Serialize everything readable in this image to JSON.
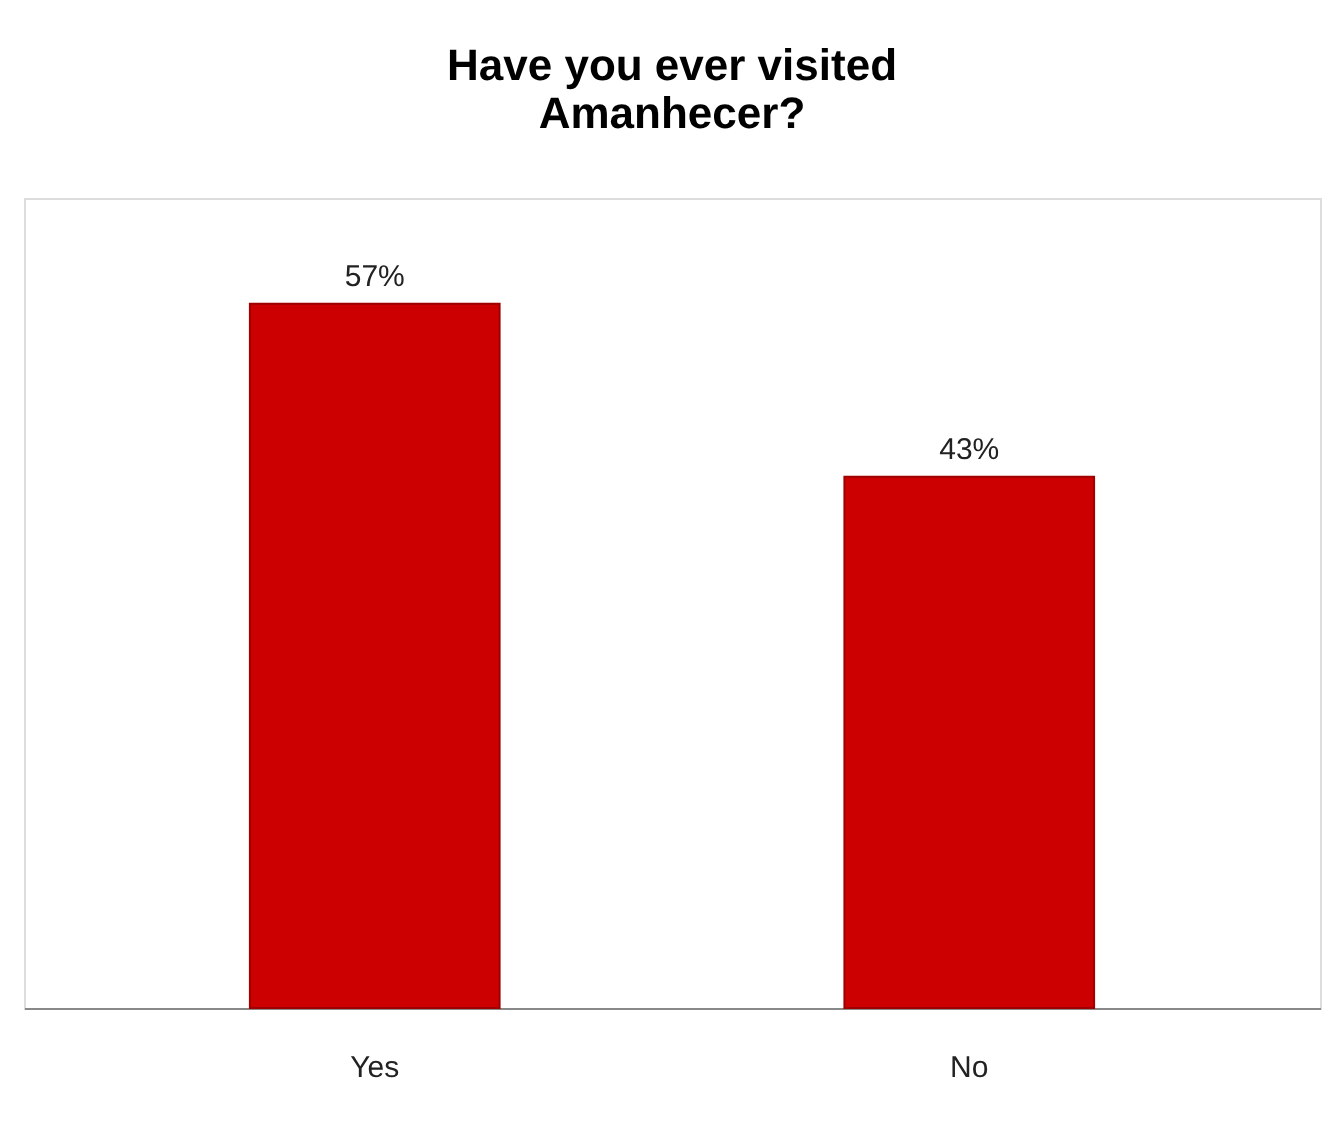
{
  "chart_data": {
    "type": "bar",
    "title": "Have you ever visited Amanhecer?",
    "categories": [
      "Yes",
      "No"
    ],
    "values": [
      57,
      43
    ],
    "value_labels": [
      "57%",
      "43%"
    ],
    "color": "#cc0000"
  }
}
